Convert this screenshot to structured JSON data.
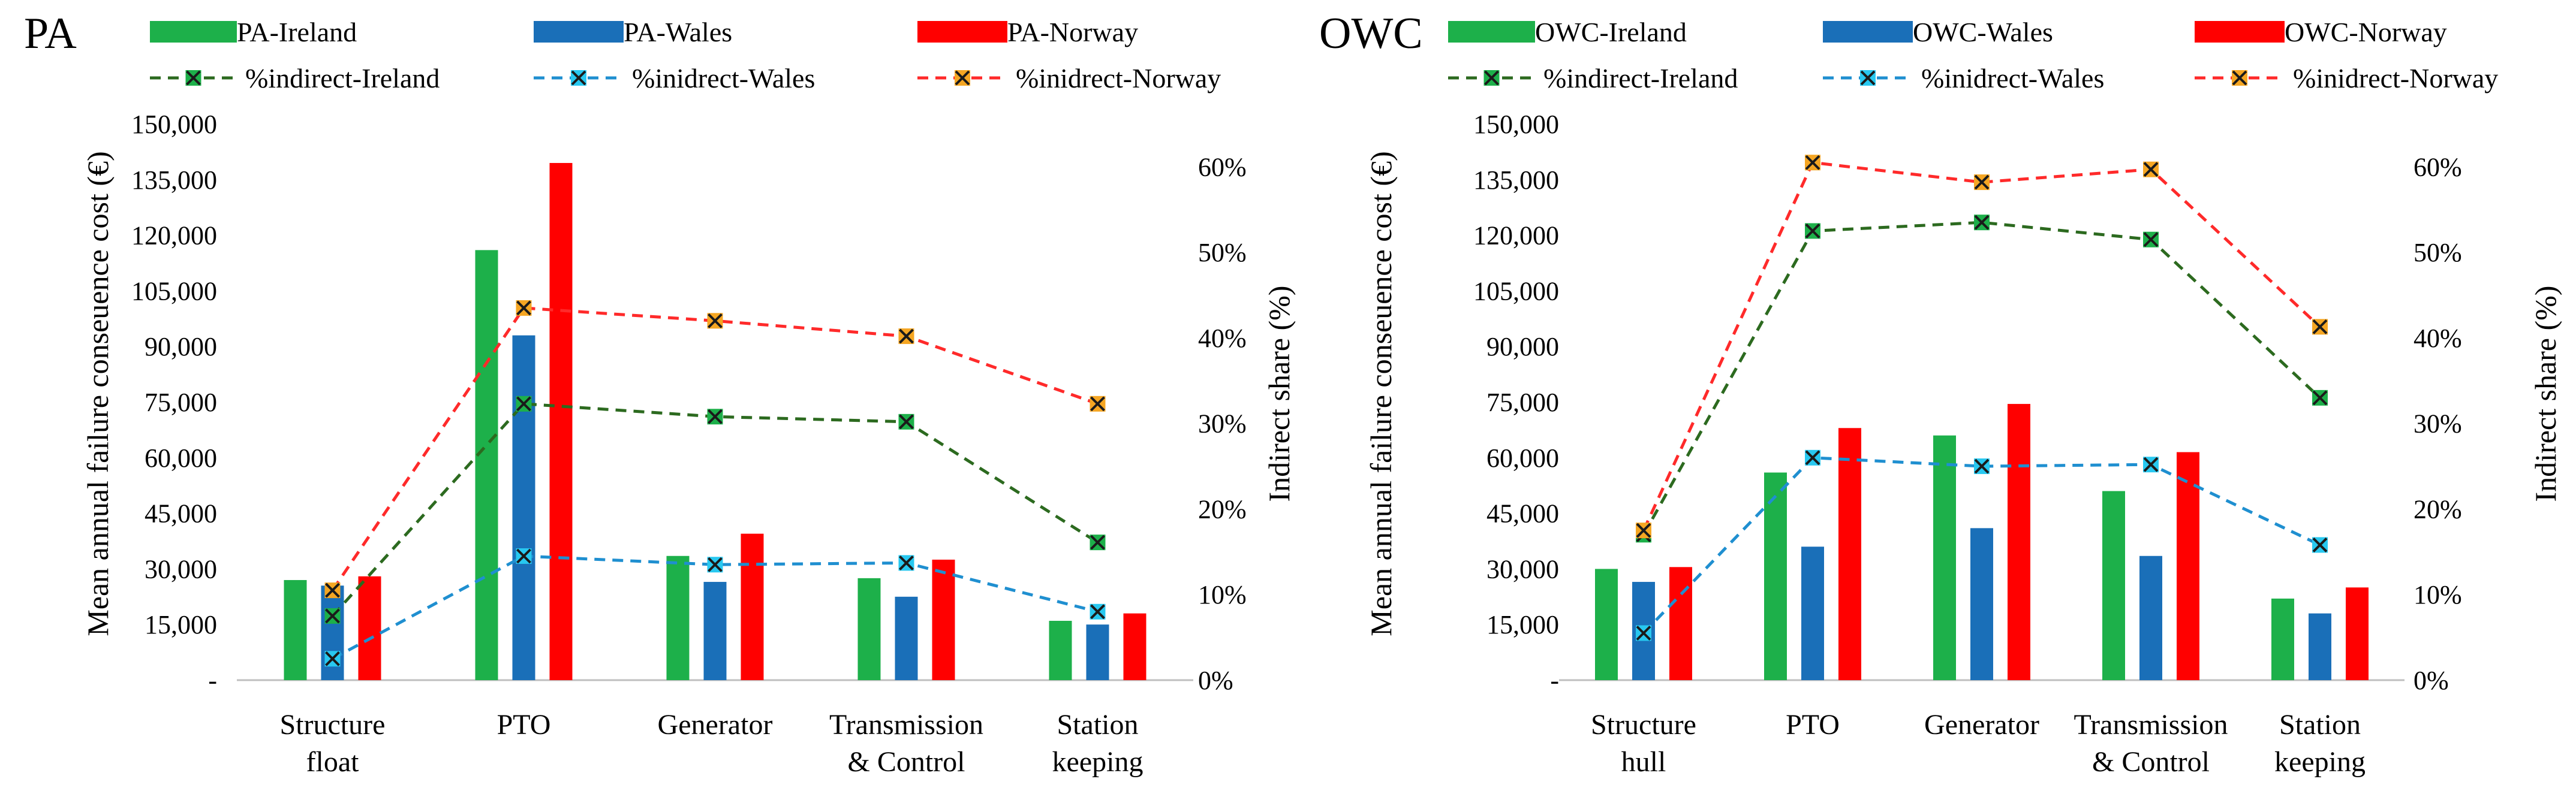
{
  "colors": {
    "ireland_bar": "#1db04a",
    "wales_bar": "#1a6fb8",
    "norway_bar": "#ff0000",
    "ireland_line": "#2c6a1f",
    "wales_line": "#1f8fd0",
    "norway_line": "#ff2a2a",
    "ireland_marker": "#1db04a",
    "wales_marker": "#28c8f0",
    "norway_marker": "#f5a623",
    "axis": "#bfbfbf"
  },
  "chart_data": [
    {
      "type": "bar",
      "panel_label": "PA",
      "categories": [
        [
          "Structure",
          "float"
        ],
        [
          "PTO"
        ],
        [
          "Generator"
        ],
        [
          "Transmission",
          "& Control"
        ],
        [
          "Station",
          "keeping"
        ]
      ],
      "ylabel": "Mean annual failure conseuence cost (€)",
      "y2label": "Indirect share (%)",
      "ylim": [
        0,
        150000
      ],
      "y2lim": [
        0,
        65
      ],
      "yticks": [
        "-",
        "15,000",
        "30,000",
        "45,000",
        "60,000",
        "75,000",
        "90,000",
        "105,000",
        "120,000",
        "135,000",
        "150,000"
      ],
      "y2ticks": [
        "0%",
        "10%",
        "20%",
        "30%",
        "40%",
        "50%",
        "60%"
      ],
      "legend": [
        "PA-Ireland",
        "PA-Wales",
        "PA-Norway",
        "%indirect-Ireland",
        "%inidrect-Wales",
        "%inidrect-Norway"
      ],
      "bar_series": [
        {
          "name": "PA-Ireland",
          "values": [
            27000,
            116000,
            33500,
            27500,
            16000
          ]
        },
        {
          "name": "PA-Wales",
          "values": [
            25500,
            93000,
            26500,
            22500,
            15000
          ]
        },
        {
          "name": "PA-Norway",
          "values": [
            28000,
            139500,
            39500,
            32500,
            18000
          ]
        }
      ],
      "line_series": [
        {
          "name": "%indirect-Ireland",
          "values": [
            7.5,
            32.3,
            30.8,
            30.2,
            16.1
          ]
        },
        {
          "name": "%inidrect-Wales",
          "values": [
            2.5,
            14.5,
            13.5,
            13.7,
            8.0
          ]
        },
        {
          "name": "%inidrect-Norway",
          "values": [
            10.5,
            43.5,
            42.0,
            40.2,
            32.3
          ]
        }
      ]
    },
    {
      "type": "bar",
      "panel_label": "OWC",
      "categories": [
        [
          "Structure",
          "hull"
        ],
        [
          "PTO"
        ],
        [
          "Generator"
        ],
        [
          "Transmission",
          "& Control"
        ],
        [
          "Station",
          "keeping"
        ]
      ],
      "ylabel": "Mean  annual failure conseuence cost (€)",
      "y2label": "Indirect share (%)",
      "ylim": [
        0,
        150000
      ],
      "y2lim": [
        0,
        65
      ],
      "yticks": [
        "-",
        "15,000",
        "30,000",
        "45,000",
        "60,000",
        "75,000",
        "90,000",
        "105,000",
        "120,000",
        "135,000",
        "150,000"
      ],
      "y2ticks": [
        "0%",
        "10%",
        "20%",
        "30%",
        "40%",
        "50%",
        "60%"
      ],
      "legend": [
        "OWC-Ireland",
        "OWC-Wales",
        "OWC-Norway",
        "%indirect-Ireland",
        "%inidrect-Wales",
        "%inidrect-Norway"
      ],
      "bar_series": [
        {
          "name": "OWC-Ireland",
          "values": [
            30000,
            56000,
            66000,
            51000,
            22000
          ]
        },
        {
          "name": "OWC-Wales",
          "values": [
            26500,
            36000,
            41000,
            33500,
            18000
          ]
        },
        {
          "name": "OWC-Norway",
          "values": [
            30500,
            68000,
            74500,
            61500,
            25000
          ]
        }
      ],
      "line_series": [
        {
          "name": "%indirect-Ireland",
          "values": [
            17.0,
            52.5,
            53.5,
            51.5,
            33.0
          ]
        },
        {
          "name": "%inidrect-Wales",
          "values": [
            5.5,
            26.0,
            25.0,
            25.2,
            15.8
          ]
        },
        {
          "name": "%inidrect-Norway",
          "values": [
            17.5,
            60.5,
            58.2,
            59.7,
            41.3
          ]
        }
      ]
    }
  ]
}
